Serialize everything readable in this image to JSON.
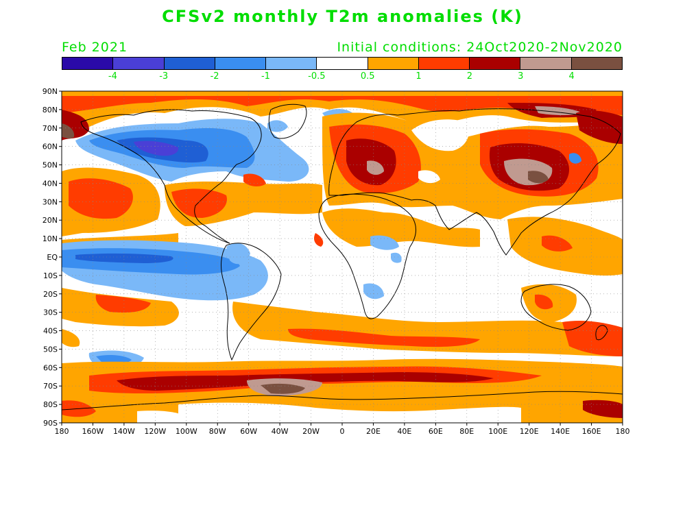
{
  "title": "CFSv2 monthly T2m anomalies (K)",
  "valid_month": "Feb 2021",
  "initial_conditions": "Initial conditions: 24Oct2020-2Nov2020",
  "colorbar": {
    "colors": [
      "#2a0aa8",
      "#4a3fd6",
      "#1f5fd4",
      "#3a8ef0",
      "#7ab8f8",
      "#ffffff",
      "#ffa500",
      "#ff3c00",
      "#aa0000",
      "#c09a90",
      "#7a5040"
    ],
    "labels": [
      "-4",
      "-3",
      "-2",
      "-1",
      "-0.5",
      "0.5",
      "1",
      "2",
      "3",
      "4"
    ]
  },
  "axes": {
    "lat_labels": [
      "90N",
      "80N",
      "70N",
      "60N",
      "50N",
      "40N",
      "30N",
      "20N",
      "10N",
      "EQ",
      "10S",
      "20S",
      "30S",
      "40S",
      "50S",
      "60S",
      "70S",
      "80S",
      "90S"
    ],
    "lon_labels": [
      "180",
      "160W",
      "140W",
      "120W",
      "100W",
      "80W",
      "60W",
      "40W",
      "20W",
      "0",
      "20E",
      "40E",
      "60E",
      "80E",
      "100E",
      "120E",
      "140E",
      "160E",
      "180"
    ]
  }
}
